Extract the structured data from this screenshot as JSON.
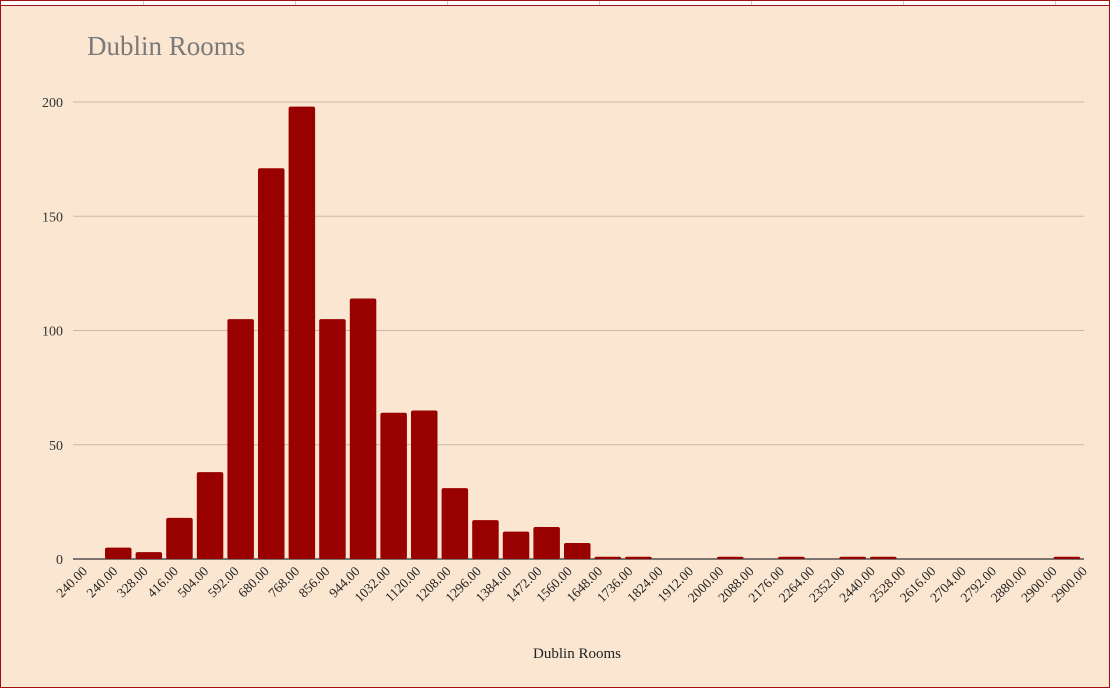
{
  "colors": {
    "background": "#fbe6d1",
    "bar": "#990000",
    "gridline": "#c8b8a8",
    "border": "#a01010"
  },
  "chart_data": {
    "type": "bar",
    "title": "Dublin Rooms",
    "xlabel": "Dublin Rooms",
    "ylabel": "",
    "ylim": [
      0,
      200
    ],
    "yticks": [
      0,
      50,
      100,
      150,
      200
    ],
    "grid": true,
    "legend": "none",
    "x_tick_labels": [
      "240.00",
      "240.00",
      "328.00",
      "416.00",
      "504.00",
      "592.00",
      "680.00",
      "768.00",
      "856.00",
      "944.00",
      "1032.00",
      "1120.00",
      "1208.00",
      "1296.00",
      "1384.00",
      "1472.00",
      "1560.00",
      "1648.00",
      "1736.00",
      "1824.00",
      "1912.00",
      "2000.00",
      "2088.00",
      "2176.00",
      "2264.00",
      "2352.00",
      "2440.00",
      "2528.00",
      "2616.00",
      "2704.00",
      "2792.00",
      "2880.00",
      "2900.00",
      "2900.00"
    ],
    "values": [
      0,
      5,
      3,
      18,
      38,
      105,
      171,
      198,
      105,
      114,
      64,
      65,
      31,
      17,
      12,
      14,
      7,
      1,
      1,
      0,
      0,
      1,
      0,
      1,
      0,
      1,
      1,
      0,
      0,
      0,
      0,
      0,
      1
    ]
  }
}
